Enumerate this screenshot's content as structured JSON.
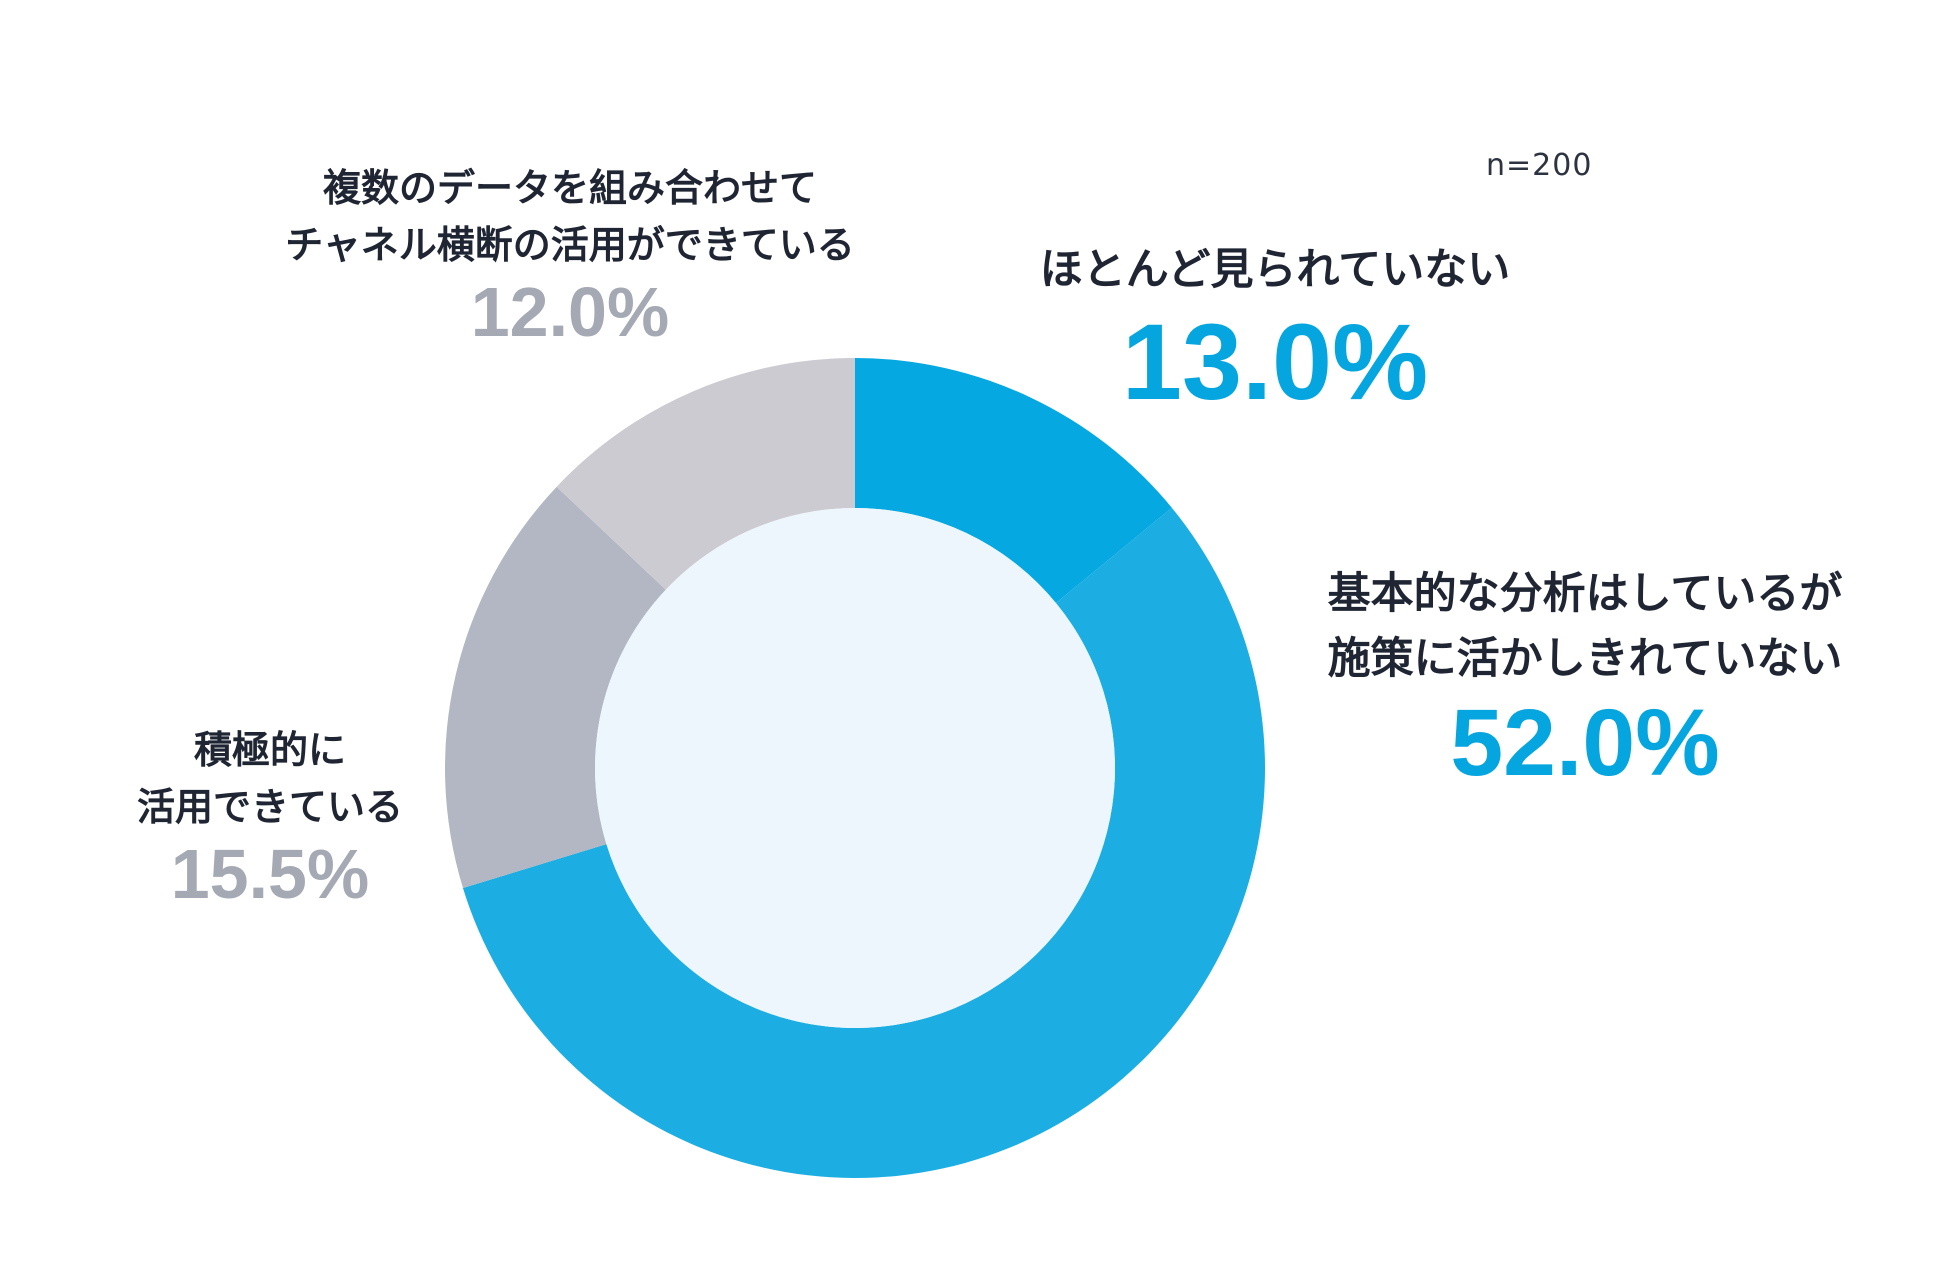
{
  "chart_data": {
    "type": "pie",
    "variant": "donut",
    "sample_note": "n=200",
    "slices": [
      {
        "label": "ほとんど見られていない",
        "value": 13.0,
        "display": "13.0%",
        "color": "#05a8e0"
      },
      {
        "label": "基本的な分析はしているが\n施策に活かしきれていない",
        "value": 52.0,
        "display": "52.0%",
        "color": "#1caee2"
      },
      {
        "label": "積極的に\n活用できている",
        "value": 15.5,
        "display": "15.5%",
        "color": "#b3b7c3"
      },
      {
        "label": "複数のデータを組み合わせて\nチャネル横断の活用ができている",
        "value": 12.0,
        "display": "12.0%",
        "color": "#cbcbd1"
      }
    ],
    "center_color": "#edf5fd",
    "legend": "none"
  }
}
